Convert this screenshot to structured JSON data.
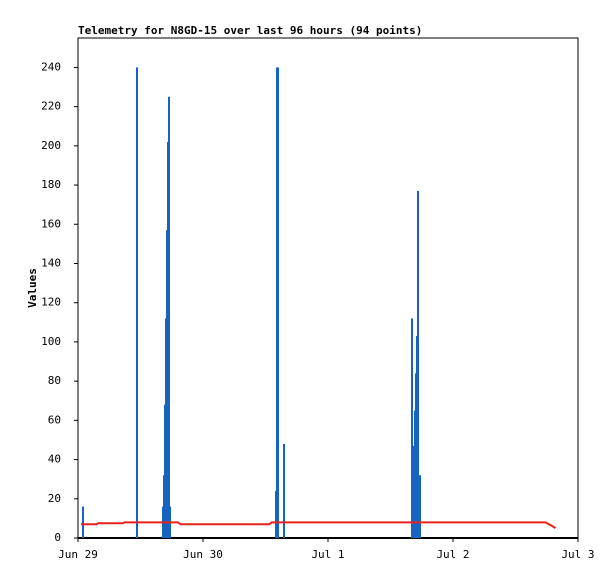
{
  "chart_data": {
    "type": "line",
    "title": "Telemetry for N8GD-15 over last 96 hours (94 points)",
    "y_label": "Values",
    "xlim": [
      0,
      4
    ],
    "xticks": [
      {
        "value": 0,
        "label": "Jun 29"
      },
      {
        "value": 1,
        "label": "Jun 30"
      },
      {
        "value": 2,
        "label": "Jul 1"
      },
      {
        "value": 3,
        "label": "Jul 2"
      },
      {
        "value": 4,
        "label": "Jul 3"
      }
    ],
    "ylim": [
      0,
      255
    ],
    "yticks": [
      0,
      20,
      40,
      60,
      80,
      100,
      120,
      140,
      160,
      180,
      200,
      220,
      240
    ],
    "series": [
      {
        "type": "bar",
        "color": "#1565c0",
        "x": [
          0.04,
          0.472,
          0.68,
          0.688,
          0.696,
          0.704,
          0.712,
          0.72,
          0.728,
          0.736,
          1.584,
          1.592,
          1.6,
          1.648,
          2.672,
          2.68,
          2.688,
          2.696,
          2.704,
          2.712,
          2.72,
          2.736
        ],
        "values": [
          16,
          240,
          16,
          32,
          68,
          112,
          157,
          202,
          225,
          16,
          24,
          240,
          240,
          48,
          112,
          28,
          47,
          65,
          84,
          103,
          177,
          32
        ]
      },
      {
        "type": "line",
        "color": "#e8221b",
        "x": [
          0.024,
          0.15,
          0.16,
          0.36,
          0.37,
          0.8,
          0.82,
          1.53,
          1.55,
          3.74,
          3.81,
          3.82
        ],
        "values": [
          7,
          7,
          7.5,
          7.5,
          8,
          8,
          7,
          7,
          8,
          8,
          5.5,
          5
        ]
      }
    ]
  }
}
